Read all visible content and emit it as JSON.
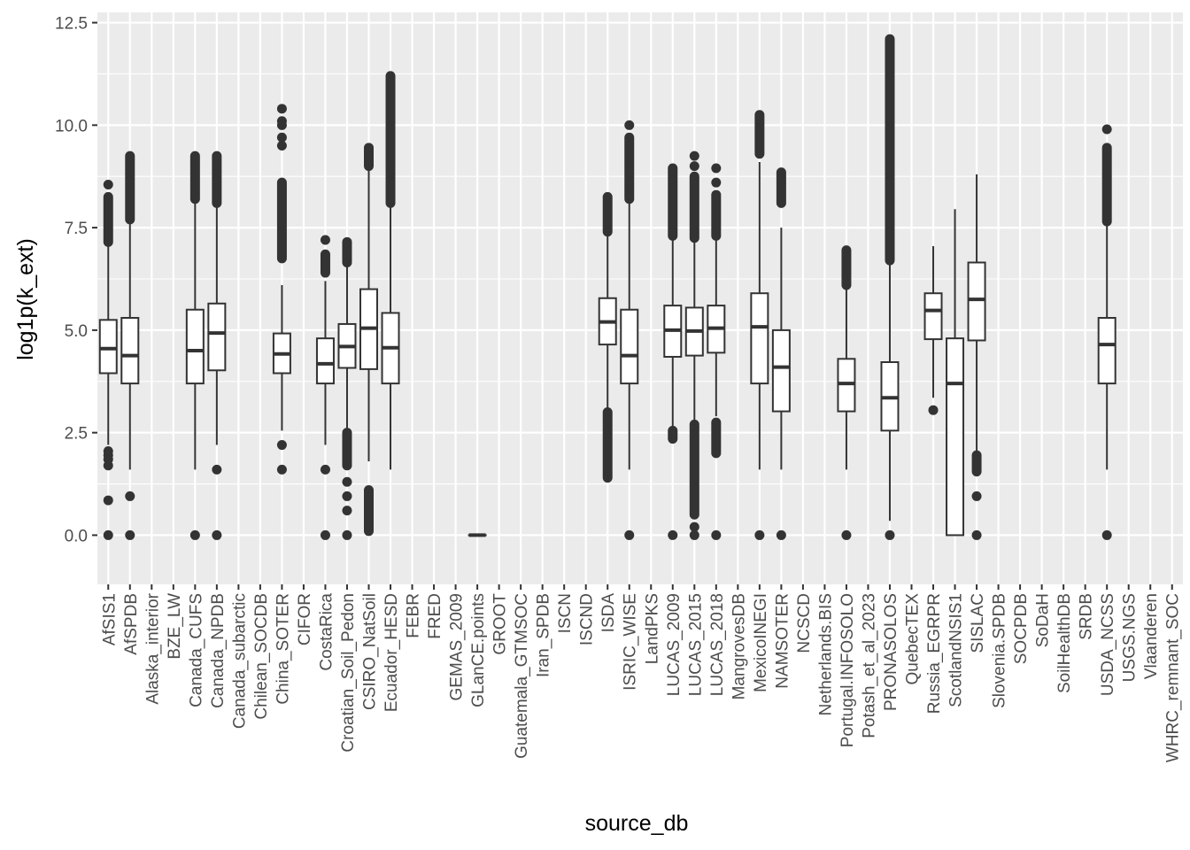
{
  "chart_data": {
    "type": "boxplot",
    "xlabel": "source_db",
    "ylabel": "log1p(k_ext)",
    "ylim": [
      -1.2,
      12.75
    ],
    "y_ticks": [
      {
        "value": 0.0,
        "label": "0.0"
      },
      {
        "value": 2.5,
        "label": "2.5"
      },
      {
        "value": 5.0,
        "label": "5.0"
      },
      {
        "value": 7.5,
        "label": "7.5"
      },
      {
        "value": 10.0,
        "label": "10.0"
      },
      {
        "value": 12.5,
        "label": "12.5"
      }
    ],
    "grid": true,
    "panel_background": "#ebebeb",
    "grid_color": "#ffffff",
    "box_color": "#333333",
    "categories": [
      "AfSIS1",
      "AfSPDB",
      "Alaska_interior",
      "BZE_LW",
      "Canada_CUFS",
      "Canada_NPDB",
      "Canada_subarctic",
      "Chilean_SOCDB",
      "China_SOTER",
      "CIFOR",
      "CostaRica",
      "Croatian_Soil_Pedon",
      "CSIRO_NatSoil",
      "Ecuador_HESD",
      "FEBR",
      "FRED",
      "GEMAS_2009",
      "GLanCE.points",
      "GROOT",
      "Guatemala_GTMSOC",
      "Iran_SPDB",
      "ISCN",
      "ISCND",
      "ISDA",
      "ISRIC_WISE",
      "LandPKS",
      "LUCAS_2009",
      "LUCAS_2015",
      "LUCAS_2018",
      "MangrovesDB",
      "MexicoINEGI",
      "NAMSOTER",
      "NCSCD",
      "Netherlands.BIS",
      "Portugal.INFOSOLO",
      "Potash_et_al_2023",
      "PRONASOLOS",
      "QuebecTEX",
      "Russia_EGRPR",
      "ScotlandNSIS1",
      "SISLAC",
      "Slovenia.SPDB",
      "SOCPDB",
      "SoDaH",
      "SoilHealthDB",
      "SRDB",
      "USDA_NCSS",
      "USGS.NGS",
      "Vlaanderen",
      "WHRC_remnant_SOC"
    ],
    "boxes": [
      {
        "category": "AfSIS1",
        "q1": 3.95,
        "median": 4.55,
        "q3": 5.25,
        "low": 2.2,
        "high": 7.1,
        "out_ranges": [
          [
            7.15,
            8.25
          ]
        ],
        "outliers": [
          8.55,
          2.05,
          1.95,
          1.85,
          1.7,
          0.85,
          0.0
        ]
      },
      {
        "category": "AfSPDB",
        "q1": 3.7,
        "median": 4.38,
        "q3": 5.3,
        "low": 1.6,
        "high": 7.6,
        "out_ranges": [
          [
            7.7,
            9.25
          ]
        ],
        "outliers": [
          0.95,
          0.0
        ]
      },
      {
        "category": "Canada_CUFS",
        "q1": 3.7,
        "median": 4.5,
        "q3": 5.5,
        "low": 1.6,
        "high": 8.1,
        "out_ranges": [
          [
            8.2,
            9.25
          ]
        ],
        "outliers": [
          0.0
        ]
      },
      {
        "category": "Canada_NPDB",
        "q1": 4.02,
        "median": 4.93,
        "q3": 5.65,
        "low": 2.2,
        "high": 8.0,
        "out_ranges": [
          [
            8.1,
            9.25
          ]
        ],
        "outliers": [
          1.6,
          0.0
        ]
      },
      {
        "category": "China_SOTER",
        "q1": 3.95,
        "median": 4.42,
        "q3": 4.92,
        "low": 2.55,
        "high": 6.1,
        "out_ranges": [
          [
            6.75,
            8.6
          ]
        ],
        "outliers": [
          9.5,
          9.7,
          10.0,
          10.1,
          10.4,
          2.2,
          1.6
        ]
      },
      {
        "category": "CostaRica",
        "q1": 3.7,
        "median": 4.18,
        "q3": 4.8,
        "low": 2.2,
        "high": 6.2,
        "out_ranges": [
          [
            6.4,
            6.85
          ]
        ],
        "outliers": [
          7.2,
          1.6,
          0.0
        ]
      },
      {
        "category": "Croatian_Soil_Pedon",
        "q1": 4.08,
        "median": 4.6,
        "q3": 5.15,
        "low": 2.55,
        "high": 6.6,
        "out_ranges": [
          [
            6.65,
            7.15
          ],
          [
            1.7,
            2.5
          ]
        ],
        "outliers": [
          1.3,
          0.95,
          0.6,
          0.0
        ]
      },
      {
        "category": "CSIRO_NatSoil",
        "q1": 4.05,
        "median": 5.05,
        "q3": 6.0,
        "low": 1.8,
        "high": 8.95,
        "out_ranges": [
          [
            9.0,
            9.45
          ],
          [
            0.1,
            1.1
          ]
        ],
        "outliers": []
      },
      {
        "category": "Ecuador_HESD",
        "q1": 3.7,
        "median": 4.57,
        "q3": 5.42,
        "low": 1.6,
        "high": 8.0,
        "out_ranges": [
          [
            8.1,
            11.2
          ]
        ],
        "outliers": []
      },
      {
        "category": "GLanCE.points",
        "q1": 0.0,
        "median": 0.0,
        "q3": 0.0,
        "low": 0.0,
        "high": 0.0,
        "out_ranges": [],
        "outliers": []
      },
      {
        "category": "ISDA",
        "q1": 4.65,
        "median": 5.2,
        "q3": 5.78,
        "low": 3.05,
        "high": 7.35,
        "out_ranges": [
          [
            7.4,
            8.25
          ],
          [
            1.4,
            3.0
          ]
        ],
        "outliers": []
      },
      {
        "category": "ISRIC_WISE",
        "q1": 3.7,
        "median": 4.38,
        "q3": 5.5,
        "low": 1.6,
        "high": 8.15,
        "out_ranges": [
          [
            8.2,
            9.7
          ]
        ],
        "outliers": [
          10.0,
          0.0
        ]
      },
      {
        "category": "LUCAS_2009",
        "q1": 4.35,
        "median": 5.0,
        "q3": 5.6,
        "low": 2.6,
        "high": 7.25,
        "out_ranges": [
          [
            7.3,
            8.95
          ],
          [
            2.35,
            2.55
          ]
        ],
        "outliers": [
          0.0
        ]
      },
      {
        "category": "LUCAS_2015",
        "q1": 4.38,
        "median": 4.98,
        "q3": 5.55,
        "low": 2.7,
        "high": 7.2,
        "out_ranges": [
          [
            7.25,
            8.75
          ],
          [
            0.5,
            2.7
          ]
        ],
        "outliers": [
          9.0,
          9.25,
          0.2,
          0.0
        ]
      },
      {
        "category": "LUCAS_2018",
        "q1": 4.45,
        "median": 5.05,
        "q3": 5.6,
        "low": 2.9,
        "high": 7.2,
        "out_ranges": [
          [
            7.3,
            8.3
          ],
          [
            2.0,
            2.75
          ]
        ],
        "outliers": [
          8.6,
          8.95,
          0.0
        ]
      },
      {
        "category": "MexicoINEGI",
        "q1": 3.7,
        "median": 5.08,
        "q3": 5.9,
        "low": 1.6,
        "high": 9.1,
        "out_ranges": [
          [
            9.3,
            10.25
          ]
        ],
        "outliers": [
          0.0
        ]
      },
      {
        "category": "NAMSOTER",
        "q1": 3.02,
        "median": 4.1,
        "q3": 5.0,
        "low": 1.6,
        "high": 7.5,
        "out_ranges": [
          [
            8.1,
            8.85
          ]
        ],
        "outliers": [
          0.0
        ]
      },
      {
        "category": "Portugal.INFOSOLO",
        "q1": 3.02,
        "median": 3.7,
        "q3": 4.3,
        "low": 1.6,
        "high": 6.0,
        "out_ranges": [
          [
            6.1,
            6.95
          ]
        ],
        "outliers": [
          0.0
        ]
      },
      {
        "category": "PRONASOLOS",
        "q1": 2.55,
        "median": 3.35,
        "q3": 4.22,
        "low": 0.35,
        "high": 6.65,
        "out_ranges": [
          [
            6.7,
            12.1
          ]
        ],
        "outliers": [
          0.0
        ]
      },
      {
        "category": "Russia_EGRPR",
        "q1": 4.78,
        "median": 5.48,
        "q3": 5.9,
        "low": 3.35,
        "high": 7.05,
        "out_ranges": [],
        "outliers": [
          3.05
        ]
      },
      {
        "category": "ScotlandNSIS1",
        "q1": 0.0,
        "median": 3.7,
        "q3": 4.8,
        "low": 0.0,
        "high": 7.95,
        "out_ranges": [],
        "outliers": []
      },
      {
        "category": "SISLAC",
        "q1": 4.75,
        "median": 5.75,
        "q3": 6.65,
        "low": 2.0,
        "high": 8.8,
        "out_ranges": [
          [
            1.55,
            1.95
          ]
        ],
        "outliers": [
          0.95,
          0.0
        ]
      },
      {
        "category": "USDA_NCSS",
        "q1": 3.7,
        "median": 4.65,
        "q3": 5.3,
        "low": 1.6,
        "high": 7.6,
        "out_ranges": [
          [
            7.65,
            9.45
          ]
        ],
        "outliers": [
          9.9,
          0.0
        ]
      }
    ]
  }
}
